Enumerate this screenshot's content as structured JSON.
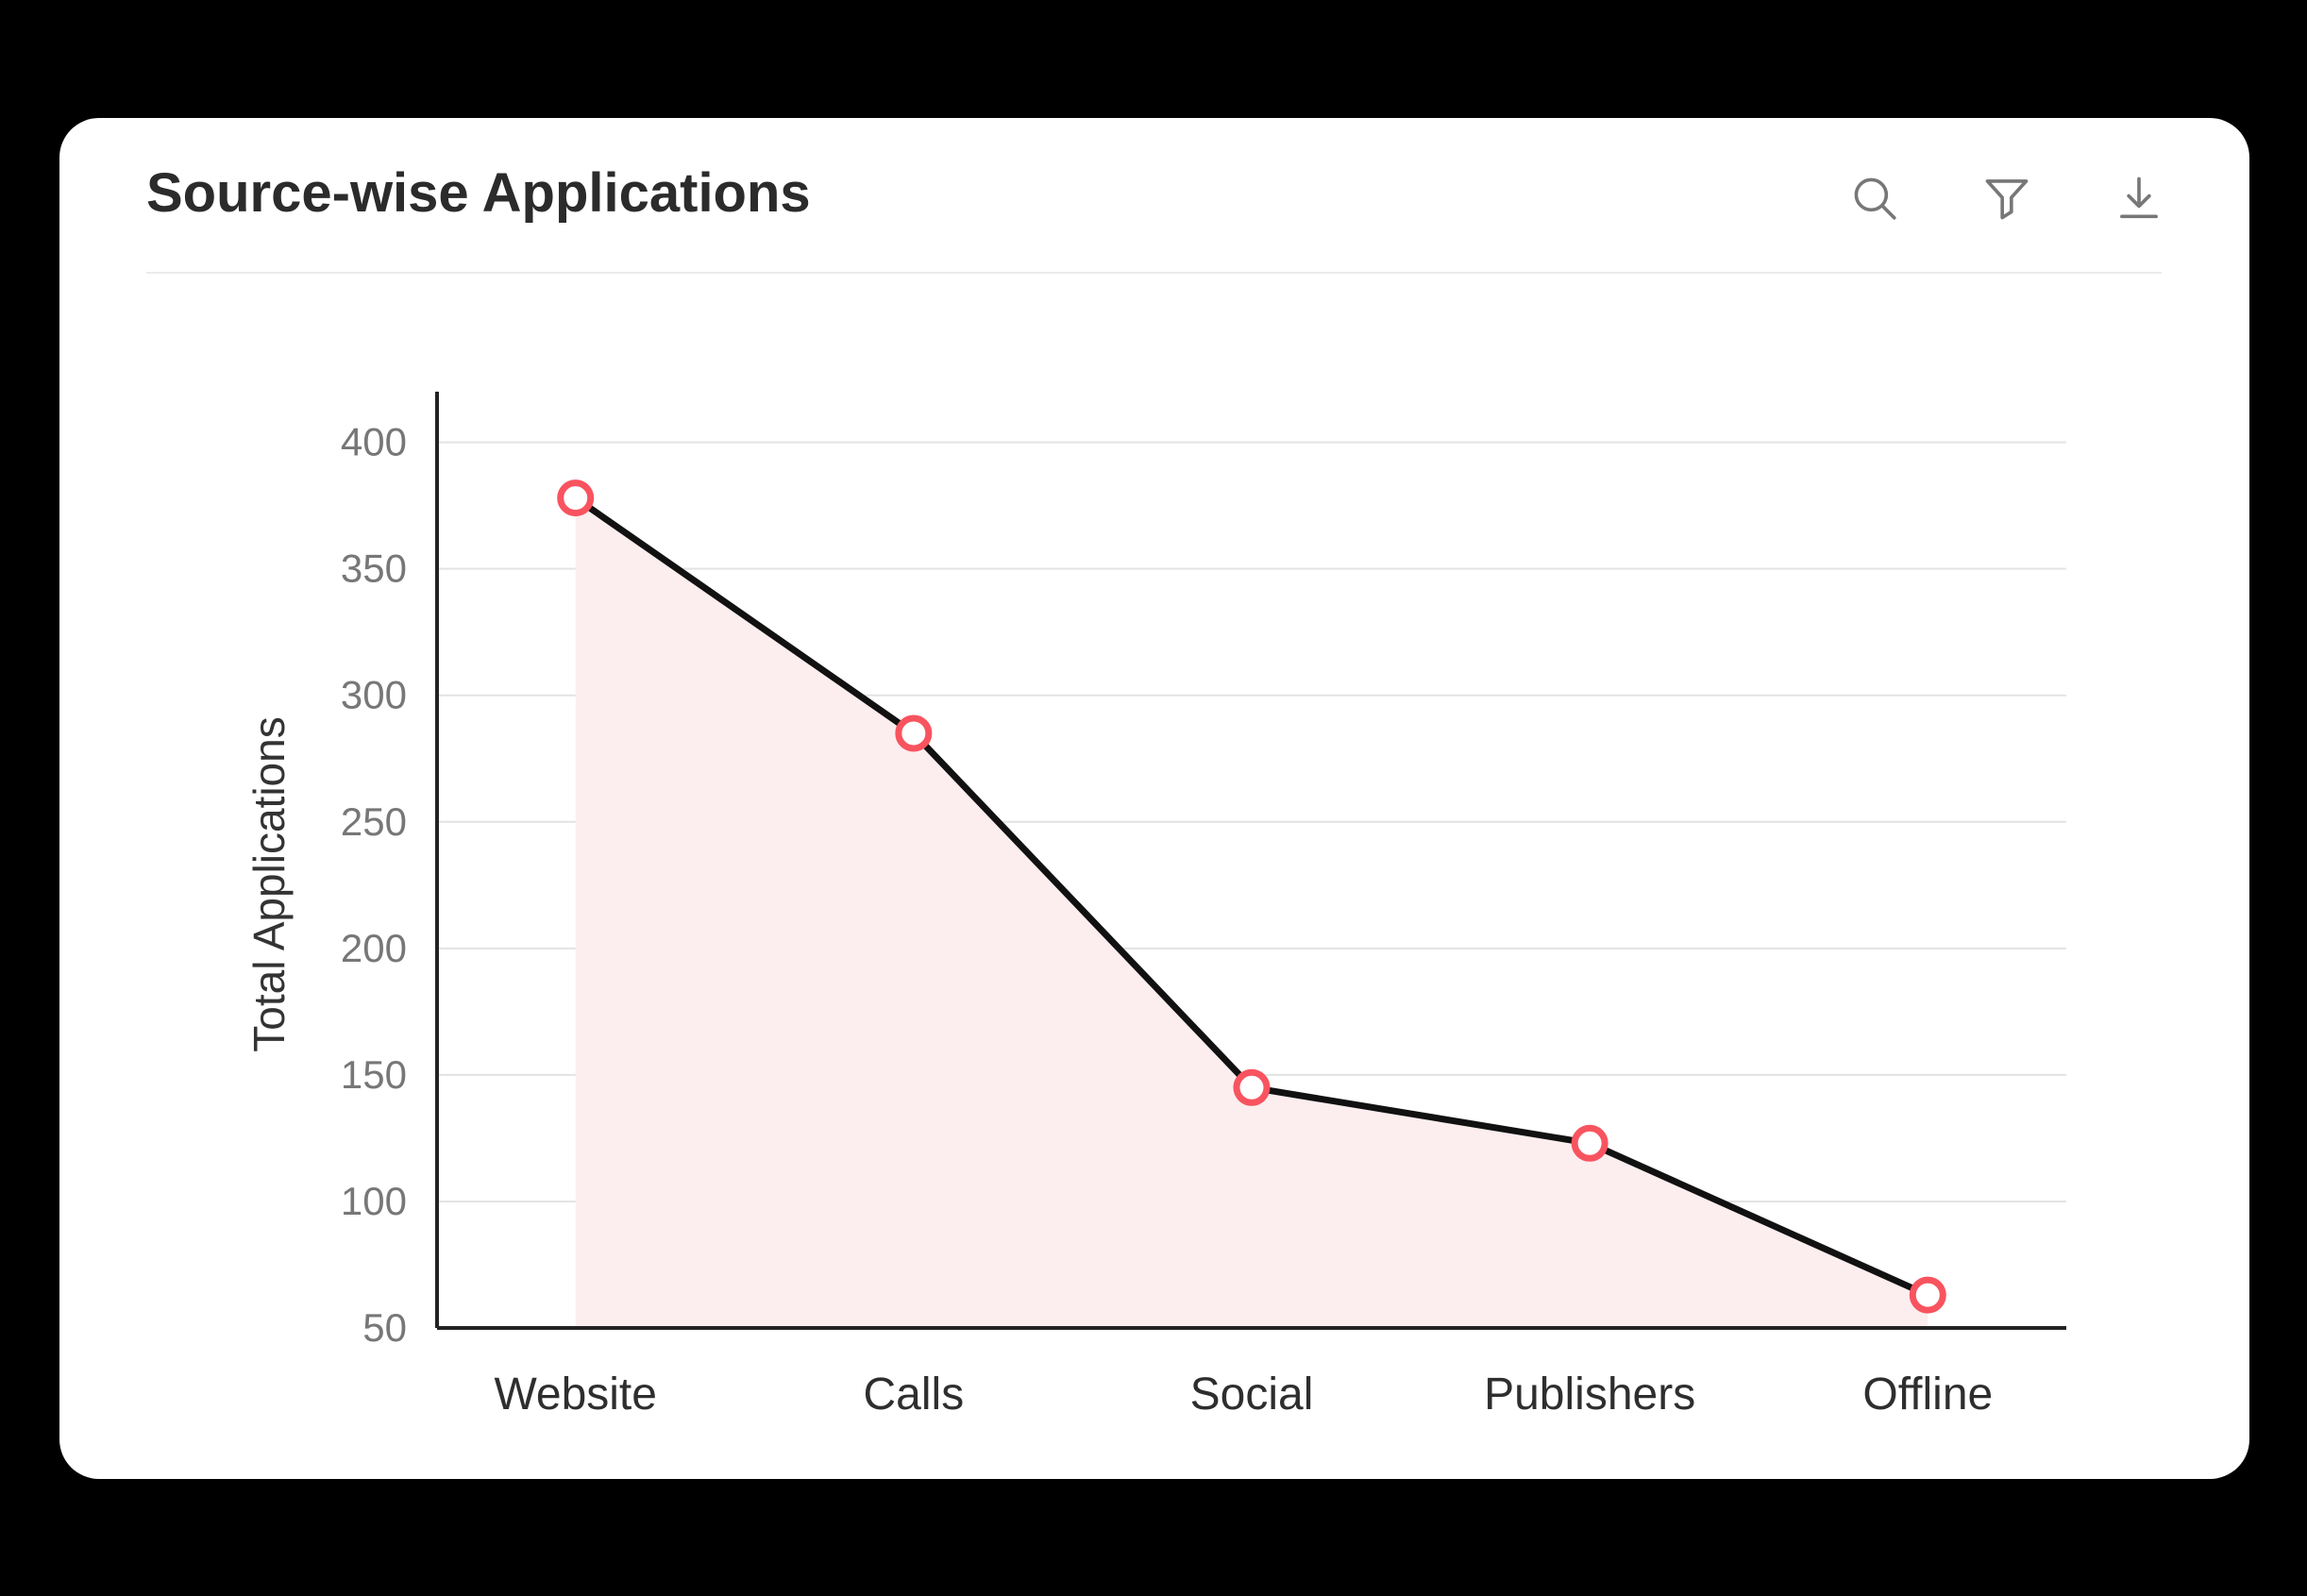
{
  "background_color": "#000000",
  "card": {
    "title": "Source-wise Applications",
    "actions": {
      "search_icon": "search-icon",
      "filter_icon": "filter-icon",
      "download_icon": "download-icon"
    }
  },
  "chart_data": {
    "type": "area",
    "title": "Source-wise Applications",
    "categories": [
      "Website",
      "Calls",
      "Social",
      "Publishers",
      "Offline"
    ],
    "series": [
      {
        "name": "Total Applications",
        "values": [
          378,
          285,
          145,
          123,
          63
        ]
      }
    ],
    "xlabel": "",
    "ylabel": "Total Applications",
    "yticks": [
      50,
      100,
      150,
      200,
      250,
      300,
      350,
      400
    ],
    "ylim": [
      50,
      420
    ],
    "grid": "horizontal-only",
    "legend": "none",
    "colors": {
      "line": "#111111",
      "marker_ring": "#F8545F",
      "marker_fill": "#FFFFFF",
      "area_fill": "#FCEDEF",
      "gridline": "#E3E3E3",
      "axis": "#222222",
      "tick_label": "#777777",
      "category_label": "#2E2E2E",
      "axis_title": "#333333",
      "icon": "#777777"
    }
  }
}
